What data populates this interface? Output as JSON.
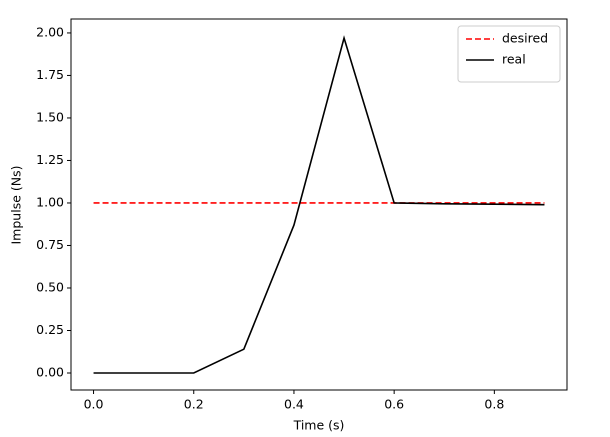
{
  "chart_data": {
    "type": "line",
    "xlabel": "Time (s)",
    "ylabel": "Impulse (Ns)",
    "x": [
      0.0,
      0.1,
      0.2,
      0.3,
      0.4,
      0.5,
      0.6,
      0.7,
      0.8,
      0.9
    ],
    "series": [
      {
        "name": "desired",
        "color": "#ff0000",
        "dash": true,
        "values": [
          1,
          1,
          1,
          1,
          1,
          1,
          1,
          1,
          1,
          1
        ]
      },
      {
        "name": "real",
        "color": "#000000",
        "dash": false,
        "values": [
          0,
          0,
          0,
          0.14,
          0.87,
          1.97,
          1.0,
          0.995,
          0.993,
          0.99
        ]
      }
    ],
    "xlim": [
      -0.045,
      0.945
    ],
    "xticks": [
      {
        "value": 0,
        "label": "0.0"
      },
      0.2,
      0.4,
      0.6,
      0.8
    ],
    "ylim": [
      -0.1,
      2.082
    ],
    "yticks": [
      {
        "value": 0,
        "label": "0.00"
      },
      0.25,
      {
        "value": 0.5,
        "label": "0.50"
      },
      0.75,
      {
        "value": 1,
        "label": "1.00"
      },
      1.25,
      {
        "value": 1.5,
        "label": "1.50"
      },
      1.75,
      {
        "value": 2,
        "label": "2.00"
      }
    ],
    "legend": "upper right",
    "grid": false
  }
}
